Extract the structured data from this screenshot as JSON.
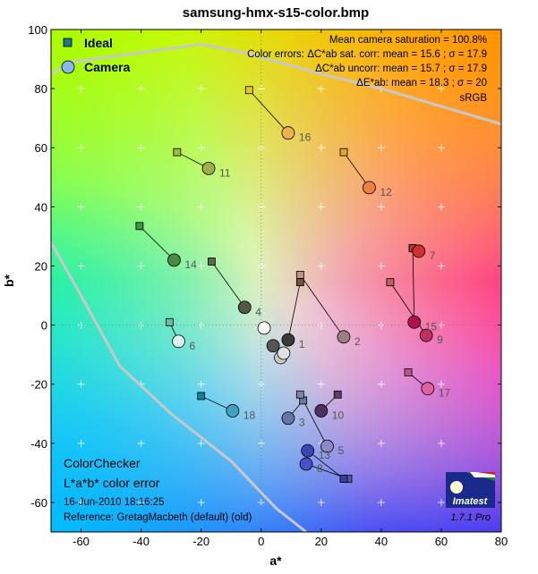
{
  "chart_data": {
    "type": "scatter",
    "title": "samsung-hmx-s15-color.bmp",
    "xlabel": "a*",
    "ylabel": "b*",
    "xlim": [
      -70,
      80
    ],
    "ylim": [
      -70,
      100
    ],
    "xticks": [
      -60,
      -40,
      -20,
      0,
      20,
      40,
      60,
      80
    ],
    "yticks": [
      -60,
      -40,
      -20,
      0,
      20,
      40,
      60,
      80,
      100
    ],
    "grid": true,
    "legend": {
      "position": "top-left",
      "ideal_label": "Ideal",
      "camera_label": "Camera"
    },
    "stats": [
      "Mean camera saturation = 100.8%",
      "Color errors:  ΔC*ab sat. corr:   mean = 15.6 ;  σ = 17.9",
      "ΔC*ab uncorr:   mean = 15.7 ;  σ = 17.9",
      "ΔE*ab:   mean = 18.3 ;  σ = 20",
      "sRGB"
    ],
    "footer": {
      "line1": "ColorChecker",
      "line2": "L*a*b* color error",
      "line3": "16-Jun-2010 18:16:25",
      "line4": "Reference: GretagMacbeth (default) (old)"
    },
    "logo_text": "Imatest",
    "version": "1.7.1  Pro",
    "series": [
      {
        "id": "1",
        "ideal": [
          13,
          14.5
        ],
        "camera": [
          9,
          -5
        ],
        "ideal_color": "#735244",
        "camera_color": "#3a3a3a"
      },
      {
        "id": "2",
        "ideal": [
          13,
          17
        ],
        "camera": [
          27.5,
          -4
        ],
        "ideal_color": "#c29682",
        "camera_color": "#9a8080"
      },
      {
        "id": "3",
        "ideal": [
          14,
          -25.5
        ],
        "camera": [
          9,
          -31.5
        ],
        "ideal_color": "#627a9d",
        "camera_color": "#6674a8"
      },
      {
        "id": "4",
        "ideal": [
          -16.5,
          21.5
        ],
        "camera": [
          -5.5,
          6
        ],
        "ideal_color": "#576c43",
        "camera_color": "#4e5a42"
      },
      {
        "id": "5",
        "ideal": [
          13,
          -23.5
        ],
        "camera": [
          22,
          -41
        ],
        "ideal_color": "#8580b1",
        "camera_color": "#8a8ac8"
      },
      {
        "id": "6",
        "ideal": [
          -30.5,
          1
        ],
        "camera": [
          -27.5,
          -5.5
        ],
        "ideal_color": "#67bdaa",
        "camera_color": "#d8f0f0"
      },
      {
        "id": "7",
        "ideal": [
          50.5,
          26
        ],
        "camera": [
          52.5,
          25
        ],
        "ideal_color": "#d67e2c",
        "camera_color": "#d03030"
      },
      {
        "id": "8",
        "ideal": [
          29,
          -52
        ],
        "camera": [
          15,
          -47
        ],
        "ideal_color": "#505ba6",
        "camera_color": "#4a50c8"
      },
      {
        "id": "9",
        "ideal": [
          43,
          14.5
        ],
        "camera": [
          55,
          -3.5
        ],
        "ideal_color": "#c15a63",
        "camera_color": "#c0305a"
      },
      {
        "id": "10",
        "ideal": [
          25.5,
          -23.5
        ],
        "camera": [
          20,
          -29
        ],
        "ideal_color": "#5e3c6c",
        "camera_color": "#503060"
      },
      {
        "id": "11",
        "ideal": [
          -28,
          58.5
        ],
        "camera": [
          -17.5,
          53
        ],
        "ideal_color": "#9dbc40",
        "camera_color": "#a0b048"
      },
      {
        "id": "12",
        "ideal": [
          27.5,
          58.5
        ],
        "camera": [
          36,
          46.5
        ],
        "ideal_color": "#e0a32e",
        "camera_color": "#f08040"
      },
      {
        "id": "13",
        "ideal": [
          27.5,
          -52
        ],
        "camera": [
          15.5,
          -42.5
        ],
        "ideal_color": "#383d96",
        "camera_color": "#3848b0"
      },
      {
        "id": "14",
        "ideal": [
          -40.5,
          33.5
        ],
        "camera": [
          -29,
          22
        ],
        "ideal_color": "#469449",
        "camera_color": "#4a8a3e"
      },
      {
        "id": "15",
        "ideal": [
          50.5,
          26
        ],
        "camera": [
          51,
          1
        ],
        "ideal_color": "#af363c",
        "camera_color": "#b01050"
      },
      {
        "id": "16",
        "ideal": [
          -4,
          79.5
        ],
        "camera": [
          9,
          65
        ],
        "ideal_color": "#e7c71f",
        "camera_color": "#f0b050"
      },
      {
        "id": "17",
        "ideal": [
          49,
          -16
        ],
        "camera": [
          55.5,
          -21.5
        ],
        "ideal_color": "#bb5695",
        "camera_color": "#e060a0"
      },
      {
        "id": "18",
        "ideal": [
          -20,
          -24
        ],
        "camera": [
          -9.5,
          -29
        ],
        "ideal_color": "#0885a1",
        "camera_color": "#40a0c0"
      },
      {
        "id": "w1",
        "ideal": [
          1,
          -1
        ],
        "camera": [
          1,
          -1
        ],
        "ideal_color": "#ffffff",
        "camera_color": "#ffffff"
      },
      {
        "id": "w2",
        "ideal": [
          6.5,
          -11
        ],
        "camera": [
          6.5,
          -11
        ],
        "ideal_color": "#c8c8c8",
        "camera_color": "#c8c8c8"
      },
      {
        "id": "w3",
        "ideal": [
          7.5,
          -9.5
        ],
        "camera": [
          7.5,
          -9.5
        ],
        "ideal_color": "#e0e0e0",
        "camera_color": "#e0e0e0"
      },
      {
        "id": "w4",
        "ideal": [
          4,
          -7
        ],
        "camera": [
          4,
          -7
        ],
        "ideal_color": "#555555",
        "camera_color": "#555555"
      }
    ],
    "gamut_outline": [
      [
        -70,
        85
      ],
      [
        -63,
        89
      ],
      [
        -20,
        95
      ],
      [
        -5,
        92
      ],
      [
        20,
        85
      ],
      [
        40,
        80
      ],
      [
        80,
        68
      ]
    ],
    "gamut_outline_lower": [
      [
        -70,
        28
      ],
      [
        -60,
        10
      ],
      [
        -47,
        -14
      ],
      [
        -30,
        -30
      ],
      [
        -10,
        -46
      ],
      [
        5,
        -62
      ],
      [
        15,
        -70
      ]
    ]
  }
}
